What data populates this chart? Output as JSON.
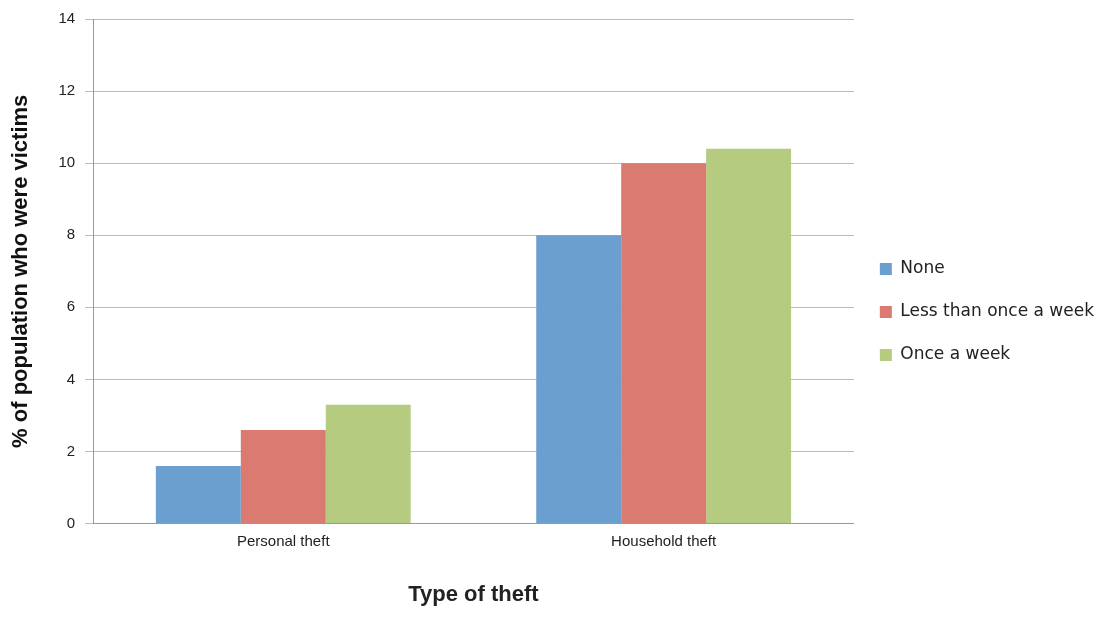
{
  "chart_data": {
    "type": "bar",
    "xlabel": "Type of theft",
    "ylabel": "% of population who were victims",
    "categories": [
      "Personal theft",
      "Household theft"
    ],
    "series": [
      {
        "name": "None",
        "color": "#6a9fd0",
        "values": [
          1.6,
          8.0
        ]
      },
      {
        "name": "Less than once a week",
        "color": "#db7a70",
        "values": [
          2.6,
          10.0
        ]
      },
      {
        "name": "Once a week",
        "color": "#b5cb80",
        "values": [
          3.3,
          10.4
        ]
      }
    ],
    "ylim": [
      0,
      14
    ],
    "yticks": [
      0,
      2,
      4,
      6,
      8,
      10,
      12,
      14
    ],
    "grid": "y",
    "legend": "right"
  }
}
